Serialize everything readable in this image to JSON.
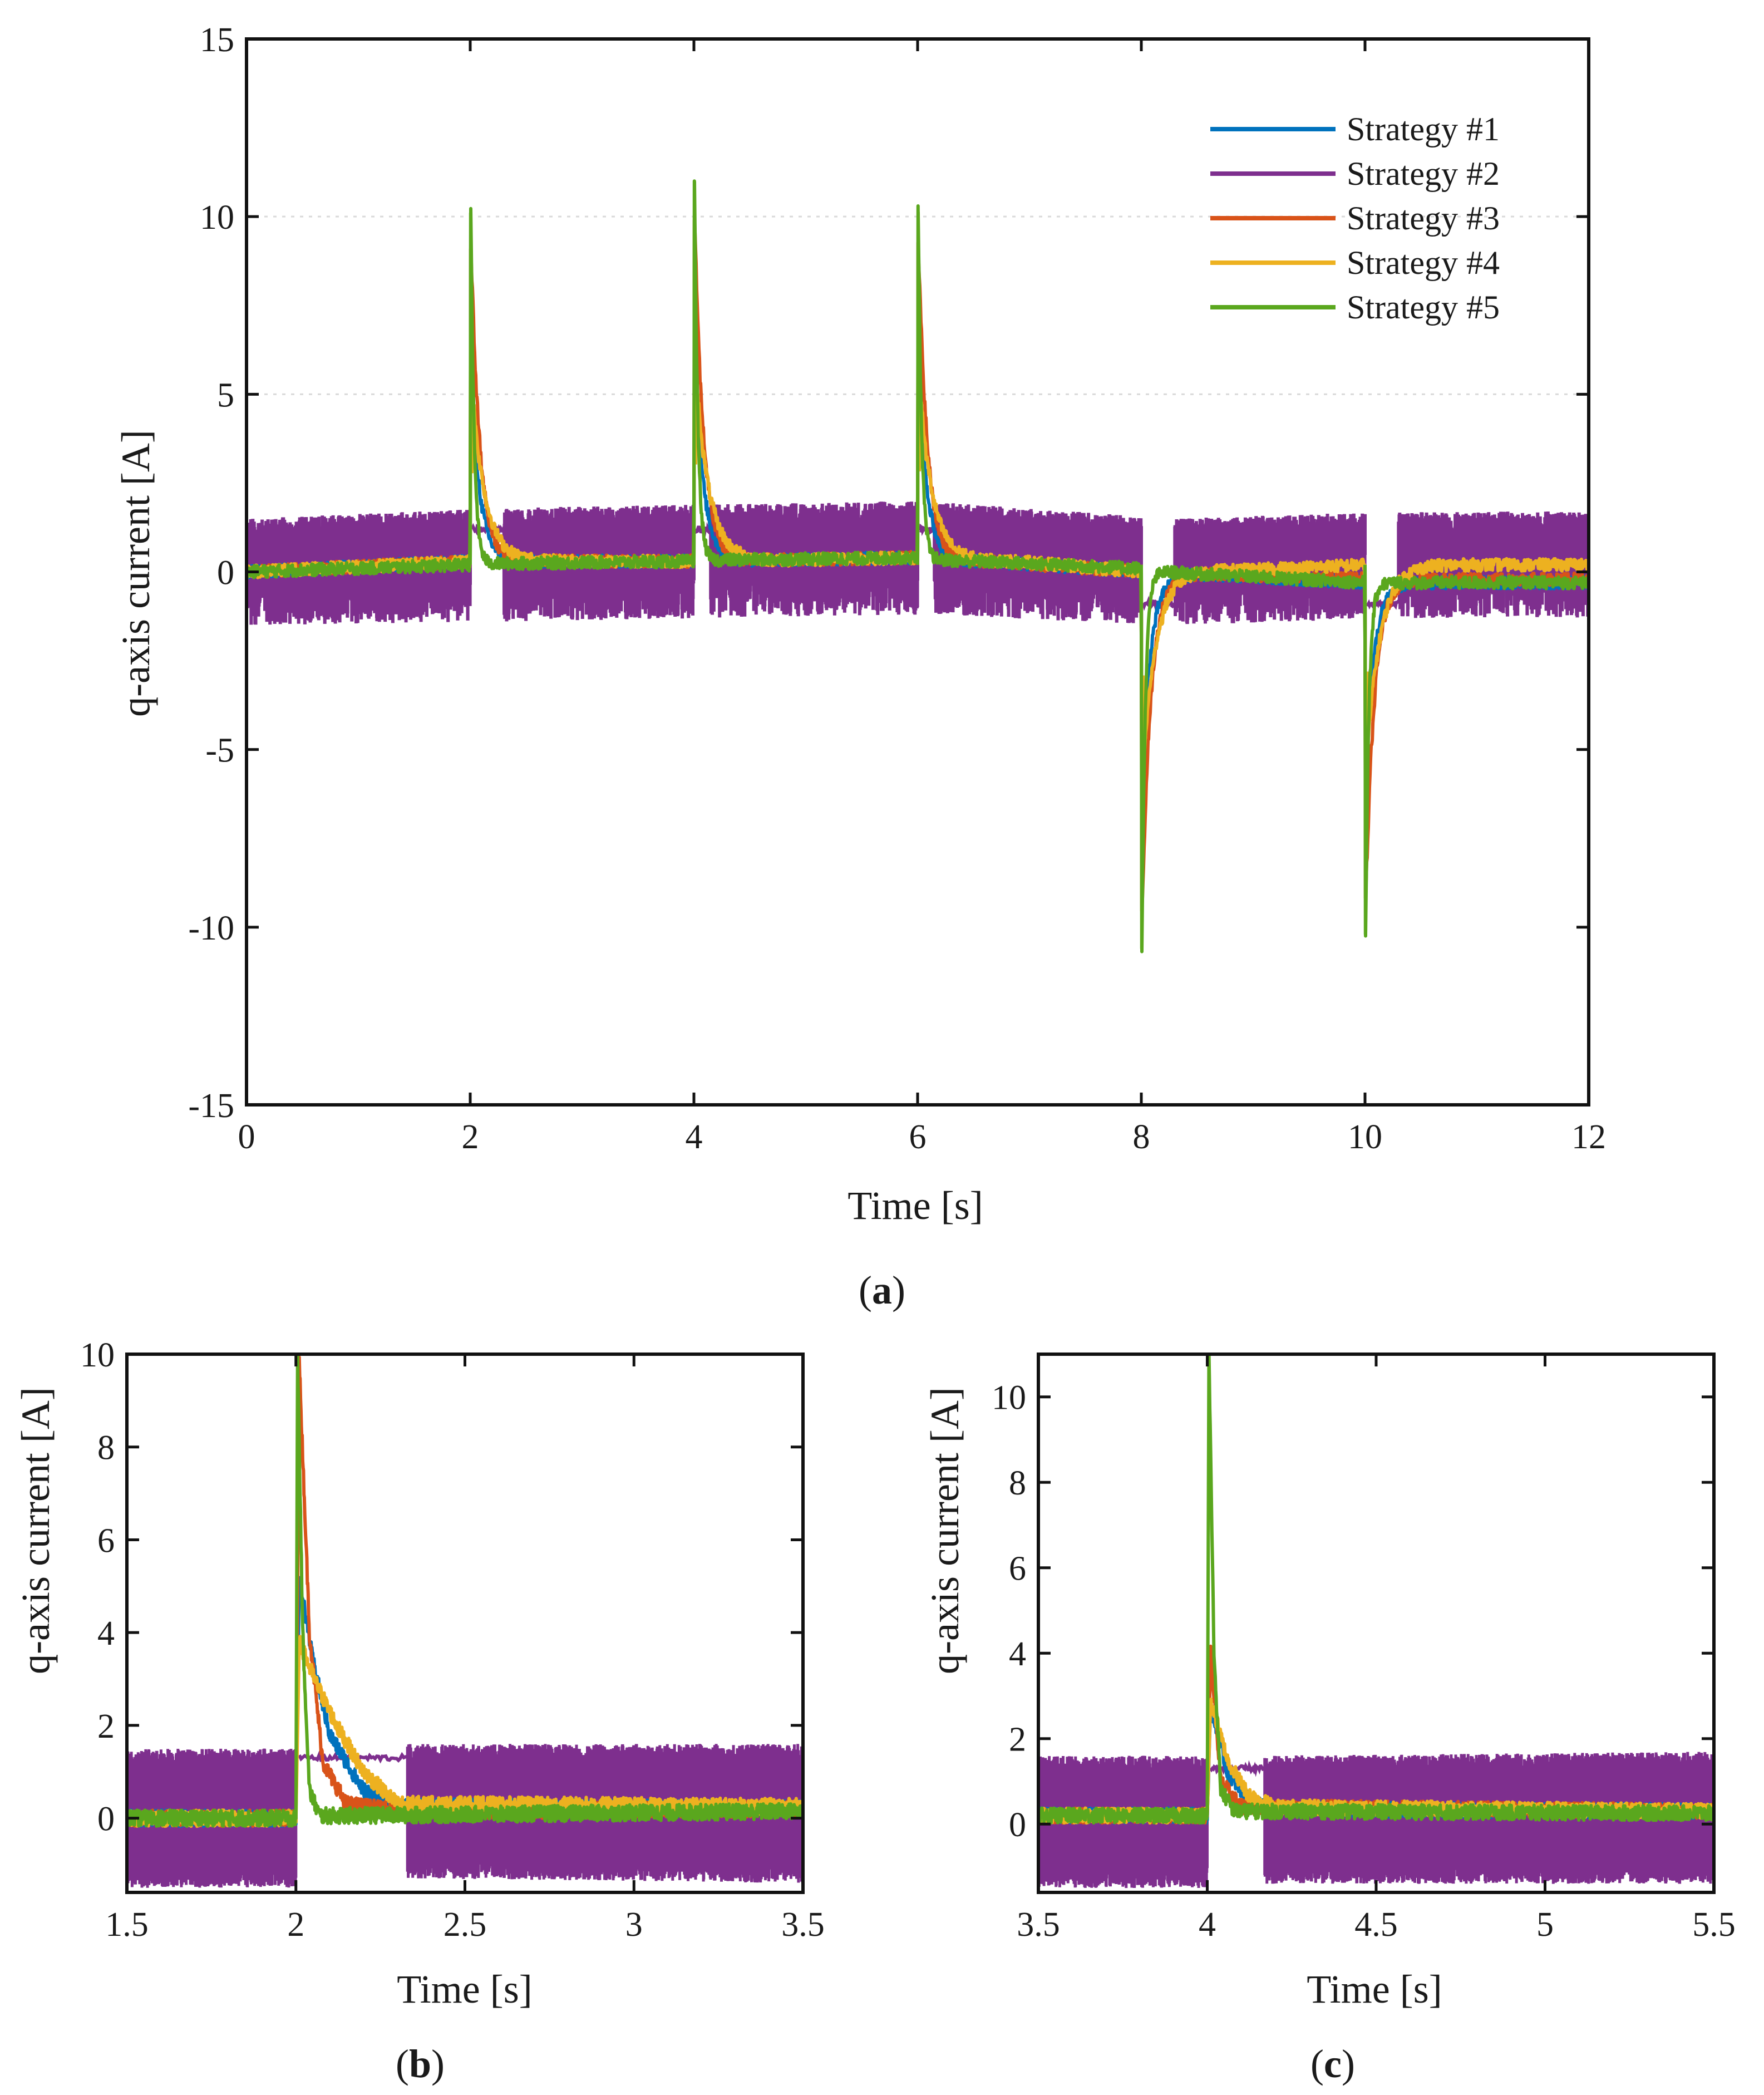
{
  "chart_data": [
    {
      "panel": "(a)",
      "panel_letter": "a",
      "type": "line",
      "xlabel": "Time [s]",
      "ylabel": "q-axis current [A]",
      "xlim": [
        0,
        12
      ],
      "ylim": [
        -15,
        15
      ],
      "xticks": [
        0,
        2,
        4,
        6,
        8,
        10,
        12
      ],
      "yticks": [
        -15,
        -10,
        -5,
        0,
        5,
        10,
        15
      ],
      "grid_y": [
        5,
        10
      ],
      "legend": {
        "position": "top-right",
        "entries": [
          "Strategy #1",
          "Strategy #2",
          "Strategy #3",
          "Strategy #4",
          "Strategy #5"
        ]
      },
      "events": [
        {
          "t": 2,
          "peak": 10.1
        },
        {
          "t": 4,
          "peak": 11.0
        },
        {
          "t": 6,
          "peak": 10.3
        },
        {
          "t": 8,
          "peak": -10.6
        },
        {
          "t": 10,
          "peak": -10.2
        }
      ],
      "series": [
        {
          "name": "Strategy #1",
          "color": "#0072BD",
          "steady": [
            [
              0,
              0.0
            ],
            [
              2,
              0.3
            ],
            [
              4,
              0.3
            ],
            [
              6,
              0.4
            ],
            [
              8,
              0.0
            ],
            [
              10,
              -0.3
            ],
            [
              12,
              -0.3
            ]
          ]
        },
        {
          "name": "Strategy #2",
          "color": "#7E2F8E",
          "band": [
            [
              0,
              -1.5,
              1.5
            ],
            [
              2.3,
              -1.4,
              1.8
            ],
            [
              6.0,
              -1.2,
              2.0
            ],
            [
              8.3,
              -1.5,
              1.5
            ],
            [
              10.3,
              -1.3,
              1.7
            ],
            [
              12,
              -1.3,
              1.7
            ]
          ]
        },
        {
          "name": "Strategy #3",
          "color": "#D95319",
          "steady": [
            [
              0,
              0.0
            ],
            [
              2,
              0.3
            ],
            [
              4,
              0.3
            ],
            [
              6,
              0.4
            ],
            [
              8,
              0.0
            ],
            [
              10,
              -0.2
            ],
            [
              12,
              -0.2
            ]
          ]
        },
        {
          "name": "Strategy #4",
          "color": "#EDB120",
          "steady": [
            [
              0,
              0.0
            ],
            [
              2,
              0.3
            ],
            [
              4,
              0.3
            ],
            [
              6,
              0.4
            ],
            [
              8,
              0.0
            ],
            [
              10,
              0.2
            ],
            [
              12,
              0.2
            ]
          ]
        },
        {
          "name": "Strategy #5",
          "color": "#5AA71E",
          "steady": [
            [
              0,
              0.0
            ],
            [
              2,
              0.2
            ],
            [
              4,
              0.3
            ],
            [
              6,
              0.4
            ],
            [
              8,
              0.1
            ],
            [
              10,
              -0.3
            ],
            [
              12,
              -0.3
            ]
          ]
        }
      ]
    },
    {
      "panel": "(b)",
      "panel_letter": "b",
      "type": "line",
      "xlabel": "Time [s]",
      "ylabel": "q-axis current [A]",
      "xlim": [
        1.5,
        3.5
      ],
      "ylim": [
        -1.6,
        10
      ],
      "xticks": [
        1.5,
        2,
        2.5,
        3,
        3.5
      ],
      "xtick_labels": [
        "1.5",
        "2",
        "2.5",
        "3",
        "3.5"
      ],
      "yticks": [
        0,
        2,
        4,
        6,
        8,
        10
      ],
      "series": [
        {
          "name": "Strategy #1",
          "color": "#0072BD",
          "points": [
            [
              1.5,
              0.0
            ],
            [
              2.0,
              0.0
            ],
            [
              2.01,
              5.2
            ],
            [
              2.05,
              3.4
            ],
            [
              2.1,
              1.8
            ],
            [
              2.2,
              0.6
            ],
            [
              2.3,
              0.25
            ],
            [
              3.5,
              0.2
            ]
          ]
        },
        {
          "name": "Strategy #2",
          "color": "#7E2F8E",
          "band": [
            [
              1.5,
              -1.5,
              1.5
            ],
            [
              2.0,
              -1.5,
              1.5
            ],
            [
              2.33,
              -1.3,
              1.6
            ],
            [
              3.5,
              -1.4,
              1.6
            ]
          ],
          "gap": [
            2.0,
            2.33
          ],
          "gap_value": 1.3
        },
        {
          "name": "Strategy #3",
          "color": "#D95319",
          "points": [
            [
              1.5,
              0.0
            ],
            [
              2.0,
              0.0
            ],
            [
              2.01,
              9.8
            ],
            [
              2.04,
              4.0
            ],
            [
              2.08,
              1.2
            ],
            [
              2.15,
              0.3
            ],
            [
              2.3,
              0.15
            ],
            [
              3.5,
              0.2
            ]
          ]
        },
        {
          "name": "Strategy #4",
          "color": "#EDB120",
          "points": [
            [
              1.5,
              0.0
            ],
            [
              2.0,
              0.0
            ],
            [
              2.01,
              3.8
            ],
            [
              2.06,
              2.9
            ],
            [
              2.12,
              2.0
            ],
            [
              2.2,
              1.0
            ],
            [
              2.3,
              0.3
            ],
            [
              3.5,
              0.25
            ]
          ]
        },
        {
          "name": "Strategy #5",
          "color": "#5AA71E",
          "points": [
            [
              1.5,
              0.0
            ],
            [
              2.0,
              0.0
            ],
            [
              2.005,
              10.0
            ],
            [
              2.02,
              4.0
            ],
            [
              2.04,
              0.6
            ],
            [
              2.07,
              0.05
            ],
            [
              3.5,
              0.15
            ]
          ]
        }
      ]
    },
    {
      "panel": "(c)",
      "panel_letter": "c",
      "type": "line",
      "xlabel": "Time [s]",
      "ylabel": "q-axis current [A]",
      "xlim": [
        3.5,
        5.5
      ],
      "ylim": [
        -1.6,
        11
      ],
      "xticks": [
        3.5,
        4,
        4.5,
        5,
        5.5
      ],
      "xtick_labels": [
        "3.5",
        "4",
        "4.5",
        "5",
        "5.5"
      ],
      "yticks": [
        0,
        2,
        4,
        6,
        8,
        10
      ],
      "series": [
        {
          "name": "Strategy #1",
          "color": "#0072BD",
          "points": [
            [
              3.5,
              0.2
            ],
            [
              4.0,
              0.2
            ],
            [
              4.01,
              2.8
            ],
            [
              4.06,
              1.2
            ],
            [
              4.12,
              0.6
            ],
            [
              4.18,
              0.35
            ],
            [
              5.5,
              0.3
            ]
          ]
        },
        {
          "name": "Strategy #2",
          "color": "#7E2F8E",
          "band": [
            [
              3.5,
              -1.5,
              1.6
            ],
            [
              4.0,
              -1.5,
              1.6
            ],
            [
              4.17,
              -1.4,
              1.6
            ],
            [
              5.5,
              -1.4,
              1.7
            ]
          ],
          "gap": [
            4.0,
            4.17
          ],
          "gap_value": 1.3
        },
        {
          "name": "Strategy #3",
          "color": "#D95319",
          "points": [
            [
              3.5,
              0.2
            ],
            [
              4.0,
              0.2
            ],
            [
              4.01,
              4.0
            ],
            [
              4.04,
              1.0
            ],
            [
              4.1,
              0.4
            ],
            [
              5.5,
              0.3
            ]
          ]
        },
        {
          "name": "Strategy #4",
          "color": "#EDB120",
          "points": [
            [
              3.5,
              0.2
            ],
            [
              4.0,
              0.2
            ],
            [
              4.01,
              2.9
            ],
            [
              4.06,
              1.5
            ],
            [
              4.12,
              0.7
            ],
            [
              4.2,
              0.4
            ],
            [
              5.5,
              0.3
            ]
          ]
        },
        {
          "name": "Strategy #5",
          "color": "#5AA71E",
          "points": [
            [
              3.5,
              0.2
            ],
            [
              4.0,
              0.2
            ],
            [
              4.005,
              11.0
            ],
            [
              4.02,
              4.0
            ],
            [
              4.04,
              0.8
            ],
            [
              4.08,
              0.3
            ],
            [
              5.5,
              0.25
            ]
          ]
        }
      ]
    }
  ]
}
